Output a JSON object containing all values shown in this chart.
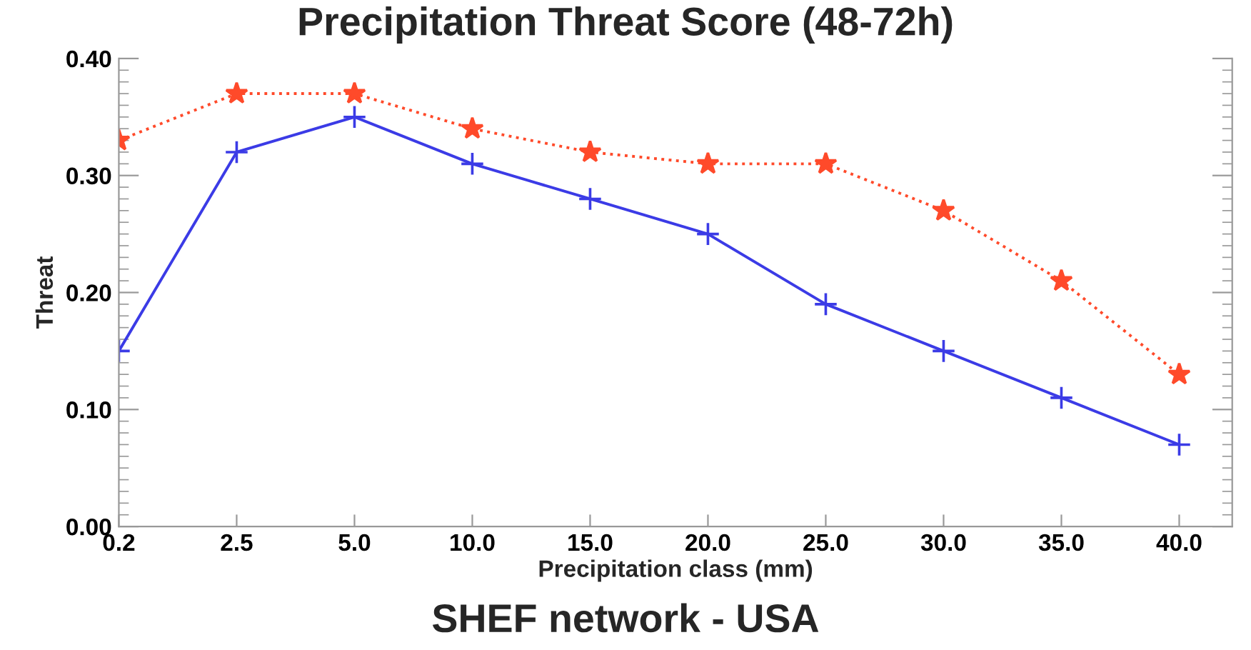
{
  "chart_data": {
    "type": "line",
    "title": "Precipitation Threat Score (48-72h)",
    "xlabel": "Precipitation class (mm)",
    "ylabel": "Threat",
    "categories": [
      "0.2",
      "2.5",
      "5.0",
      "10.0",
      "15.0",
      "20.0",
      "25.0",
      "30.0",
      "35.0",
      "40.0"
    ],
    "series": [
      {
        "color": "#ff4a2a",
        "marker": "star",
        "line_style": "dotted",
        "values": [
          0.33,
          0.37,
          0.37,
          0.34,
          0.32,
          0.31,
          0.31,
          0.27,
          0.21,
          0.13
        ]
      },
      {
        "color": "#3b3be6",
        "marker": "cross",
        "line_style": "solid",
        "values": [
          0.15,
          0.32,
          0.35,
          0.31,
          0.28,
          0.25,
          0.19,
          0.15,
          0.11,
          0.07
        ]
      }
    ],
    "ylim": [
      0,
      0.4
    ],
    "yticks": [
      {
        "value": 0,
        "label": "0.00"
      },
      {
        "value": 0.1,
        "label": "0.10"
      },
      {
        "value": 0.2,
        "label": "0.20"
      },
      {
        "value": 0.3,
        "label": "0.30"
      },
      {
        "value": 0.4,
        "label": "0.40"
      }
    ],
    "grid": false,
    "legend": false,
    "annotations": [
      "SHEF network - USA"
    ]
  }
}
